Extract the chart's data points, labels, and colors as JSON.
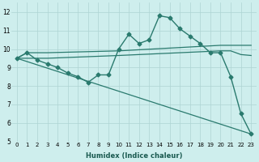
{
  "xlabel": "Humidex (Indice chaleur)",
  "bg_color": "#ceeeed",
  "grid_color": "#aed4d3",
  "line_color": "#2a7a6e",
  "xlim": [
    -0.5,
    23.5
  ],
  "ylim": [
    5,
    12.5
  ],
  "xticks": [
    0,
    1,
    2,
    3,
    4,
    5,
    6,
    7,
    8,
    9,
    10,
    11,
    12,
    13,
    14,
    15,
    16,
    17,
    18,
    19,
    20,
    21,
    22,
    23
  ],
  "yticks": [
    5,
    6,
    7,
    8,
    9,
    10,
    11,
    12
  ],
  "series": [
    {
      "x": [
        0,
        1,
        2,
        3,
        4,
        5,
        6,
        7,
        8,
        9,
        10,
        11,
        12,
        13,
        14,
        15,
        16,
        17,
        18,
        19,
        20,
        21,
        22,
        23
      ],
      "y": [
        9.5,
        9.8,
        9.4,
        9.2,
        9.0,
        8.7,
        8.5,
        8.2,
        8.6,
        8.6,
        10.0,
        10.8,
        10.3,
        10.5,
        11.8,
        11.7,
        11.1,
        10.7,
        10.3,
        9.8,
        9.8,
        8.5,
        6.5,
        5.4
      ],
      "marker": "D",
      "markersize": 2.5,
      "linewidth": 1.0
    },
    {
      "x": [
        0,
        1,
        2,
        3,
        10,
        20,
        21,
        22,
        23
      ],
      "y": [
        9.5,
        9.8,
        9.8,
        9.8,
        9.9,
        10.2,
        10.2,
        10.2,
        10.2
      ],
      "marker": null,
      "markersize": 0,
      "linewidth": 0.9
    },
    {
      "x": [
        0,
        2,
        3,
        10,
        20,
        21,
        22,
        23
      ],
      "y": [
        9.5,
        9.5,
        9.5,
        9.65,
        9.9,
        9.9,
        9.7,
        9.65
      ],
      "marker": null,
      "markersize": 0,
      "linewidth": 0.9
    },
    {
      "x": [
        0,
        23
      ],
      "y": [
        9.5,
        5.4
      ],
      "marker": null,
      "markersize": 0,
      "linewidth": 0.9
    }
  ]
}
